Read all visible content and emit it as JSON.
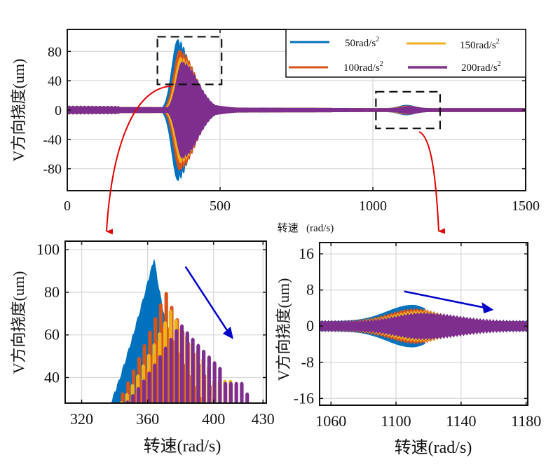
{
  "colors": {
    "s50": "#0072BD",
    "s100": "#D95319",
    "s150": "#EDB120",
    "s200": "#7E2F8E",
    "callout_arrow": "#e00000",
    "trend_arrow": "#0000cc",
    "grid": "#d9d9d9"
  },
  "chart_data": [
    {
      "id": "overview",
      "type": "area",
      "title": "",
      "xlabel": "转速   (rad/s)",
      "ylabel": "V方向挠度(um)",
      "xlim": [
        0,
        1500
      ],
      "ylim": [
        -110,
        110
      ],
      "xticks": [
        0,
        500,
        1000,
        1500
      ],
      "xtick_labels": [
        "0",
        "500",
        "1000",
        "1500"
      ],
      "yticks": [
        80,
        40,
        0,
        -40,
        -80
      ],
      "ytick_labels": [
        "80",
        "40",
        "0",
        "-40",
        "-80"
      ],
      "grid": true,
      "legend": {
        "placement": "top-right",
        "columns": 2
      },
      "series": [
        {
          "name": "50rad/s",
          "sup": "2",
          "key": "s50",
          "peak_x": 362,
          "peak_amp": 96,
          "second_peak_x": 1110,
          "second_peak_amp": 4.5
        },
        {
          "name": "100rad/s",
          "sup": "2",
          "key": "s100",
          "peak_x": 368,
          "peak_amp": 82,
          "second_peak_x": 1112,
          "second_peak_amp": 3.5
        },
        {
          "name": "150rad/s",
          "sup": "2",
          "key": "s150",
          "peak_x": 372,
          "peak_amp": 72,
          "second_peak_x": 1115,
          "second_peak_amp": 3.2
        },
        {
          "name": "200rad/s",
          "sup": "2",
          "key": "s200",
          "peak_x": 377,
          "peak_amp": 66,
          "second_peak_x": 1120,
          "second_peak_amp": 3.0
        }
      ],
      "baseline_amp": 4,
      "zoom_boxes": [
        {
          "x": [
            295,
            505
          ],
          "y": [
            35,
            100
          ]
        },
        {
          "x": [
            1010,
            1220
          ],
          "y": [
            -25,
            25
          ]
        }
      ]
    },
    {
      "id": "zoom-first-critical",
      "type": "area",
      "xlabel": "转速(rad/s)",
      "ylabel": "V方向挠度(um)",
      "xlim": [
        310,
        432
      ],
      "ylim": [
        28,
        104
      ],
      "xticks": [
        320,
        360,
        400,
        430
      ],
      "xtick_labels": [
        "320",
        "360",
        "400",
        "430"
      ],
      "yticks": [
        100,
        80,
        60,
        40
      ],
      "ytick_labels": [
        "100",
        "80",
        "60",
        "40"
      ],
      "grid": true,
      "series": [
        {
          "name": "50rad/s²",
          "key": "s50",
          "start_x": 337,
          "peak_x": 364,
          "peak": 97,
          "end_x": 380,
          "spikes": false
        },
        {
          "name": "100rad/s²",
          "key": "s100",
          "start_x": 341,
          "peak_x": 371,
          "peak": 81,
          "end_x": 401,
          "spikes": true
        },
        {
          "name": "150rad/s²",
          "key": "s150",
          "start_x": 343,
          "peak_x": 374,
          "peak": 72,
          "end_x": 411,
          "spikes": true
        },
        {
          "name": "200rad/s²",
          "key": "s200",
          "start_x": 346,
          "peak_x": 380,
          "peak": 66,
          "end_x": 421,
          "spikes": true
        }
      ],
      "trend_arrow": {
        "from": [
          383,
          92
        ],
        "to": [
          412,
          58
        ]
      }
    },
    {
      "id": "zoom-second-critical",
      "type": "area",
      "xlabel": "转速(rad/s)",
      "ylabel": "V方向挠度(um)",
      "xlim": [
        1053,
        1181
      ],
      "ylim": [
        -17.5,
        18.5
      ],
      "xticks": [
        1060,
        1100,
        1140,
        1180
      ],
      "xtick_labels": [
        "1060",
        "1100",
        "1140",
        "1180"
      ],
      "yticks": [
        16,
        8,
        0,
        -8,
        -16
      ],
      "ytick_labels": [
        "16",
        "8",
        "0",
        "-8",
        "-16"
      ],
      "grid": true,
      "series": [
        {
          "name": "50rad/s²",
          "key": "s50",
          "peak_x": 1110,
          "peak": 4.7,
          "base": 1.1,
          "decay": 16
        },
        {
          "name": "100rad/s²",
          "key": "s100",
          "peak_x": 1112,
          "peak": 3.8,
          "base": 1.1,
          "decay": 20
        },
        {
          "name": "150rad/s²",
          "key": "s150",
          "peak_x": 1114,
          "peak": 3.3,
          "base": 1.1,
          "decay": 24
        },
        {
          "name": "200rad/s²",
          "key": "s200",
          "peak_x": 1116,
          "peak": 2.9,
          "base": 1.1,
          "decay": 30
        }
      ],
      "trend_arrow": {
        "from": [
          1105,
          7.7
        ],
        "to": [
          1160,
          3.6
        ]
      }
    }
  ]
}
